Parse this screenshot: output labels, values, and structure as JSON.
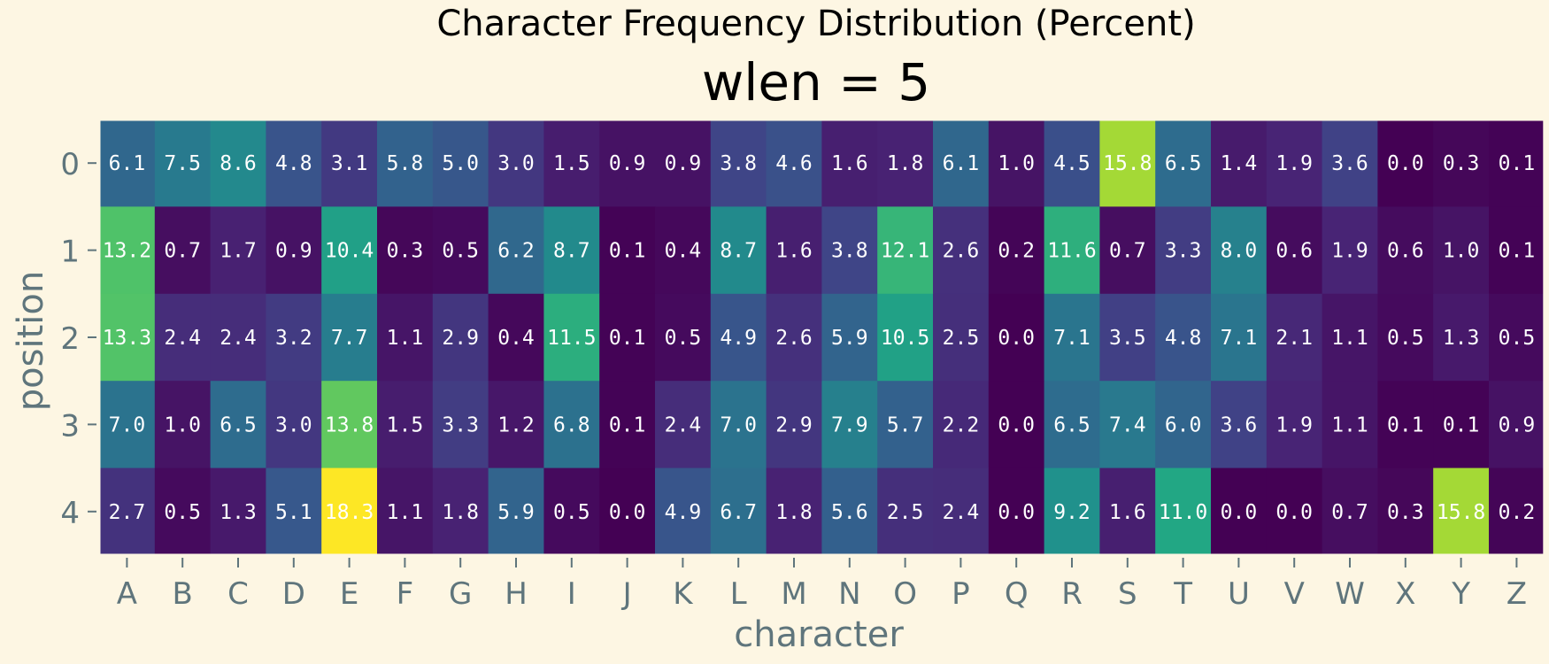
{
  "chart_data": {
    "type": "heatmap",
    "suptitle": "Character Frequency Distribution (Percent)",
    "title": "wlen = 5",
    "xlabel": "character",
    "ylabel": "position",
    "x_categories": [
      "A",
      "B",
      "C",
      "D",
      "E",
      "F",
      "G",
      "H",
      "I",
      "J",
      "K",
      "L",
      "M",
      "N",
      "O",
      "P",
      "Q",
      "R",
      "S",
      "T",
      "U",
      "V",
      "W",
      "X",
      "Y",
      "Z"
    ],
    "y_categories": [
      "0",
      "1",
      "2",
      "3",
      "4"
    ],
    "values": [
      [
        6.1,
        7.5,
        8.6,
        4.8,
        3.1,
        5.8,
        5.0,
        3.0,
        1.5,
        0.9,
        0.9,
        3.8,
        4.6,
        1.6,
        1.8,
        6.1,
        1.0,
        4.5,
        15.8,
        6.5,
        1.4,
        1.9,
        3.6,
        0.0,
        0.3,
        0.1
      ],
      [
        13.2,
        0.7,
        1.7,
        0.9,
        10.4,
        0.3,
        0.5,
        6.2,
        8.7,
        0.1,
        0.4,
        8.7,
        1.6,
        3.8,
        12.1,
        2.6,
        0.2,
        11.6,
        0.7,
        3.3,
        8.0,
        0.6,
        1.9,
        0.6,
        1.0,
        0.1
      ],
      [
        13.3,
        2.4,
        2.4,
        3.2,
        7.7,
        1.1,
        2.9,
        0.4,
        11.5,
        0.1,
        0.5,
        4.9,
        2.6,
        5.9,
        10.5,
        2.5,
        0.0,
        7.1,
        3.5,
        4.8,
        7.1,
        2.1,
        1.1,
        0.5,
        1.3,
        0.5
      ],
      [
        7.0,
        1.0,
        6.5,
        3.0,
        13.8,
        1.5,
        3.3,
        1.2,
        6.8,
        0.1,
        2.4,
        7.0,
        2.9,
        7.9,
        5.7,
        2.2,
        0.0,
        6.5,
        7.4,
        6.0,
        3.6,
        1.9,
        1.1,
        0.1,
        0.1,
        0.9
      ],
      [
        2.7,
        0.5,
        1.3,
        5.1,
        18.3,
        1.1,
        1.8,
        5.9,
        0.5,
        0.0,
        4.9,
        6.7,
        1.8,
        5.6,
        2.5,
        2.4,
        0.0,
        9.2,
        1.6,
        11.0,
        0.0,
        0.0,
        0.7,
        0.3,
        15.8,
        0.2
      ]
    ],
    "value_range": [
      0,
      18.3
    ],
    "colormap": "viridis",
    "grid": false,
    "colors": {
      "background": "#fdf6e3",
      "tick_text": "#5f757c",
      "title_text": "#000000",
      "cell_text": "#ffffff"
    }
  }
}
